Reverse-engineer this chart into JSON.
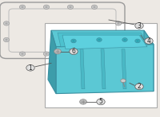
{
  "bg_color": "#ede9e4",
  "box_color": "#ffffff",
  "pan_fill": "#5bc8d4",
  "pan_fill_dark": "#4aafbc",
  "pan_fill_darker": "#3d9daa",
  "pan_edge": "#3a8fa0",
  "label_color": "#222222",
  "line_color": "#555555",
  "bolt_outer": "#cccccc",
  "bolt_inner": "#aaaaaa",
  "gasket_outer": "#999999",
  "gasket_inner": "#bbbbbb",
  "callout_fill": "#e0e0e0",
  "hardware_fill": "#bbbbbb",
  "hardware_edge": "#888888",
  "label_fs": 5.5
}
